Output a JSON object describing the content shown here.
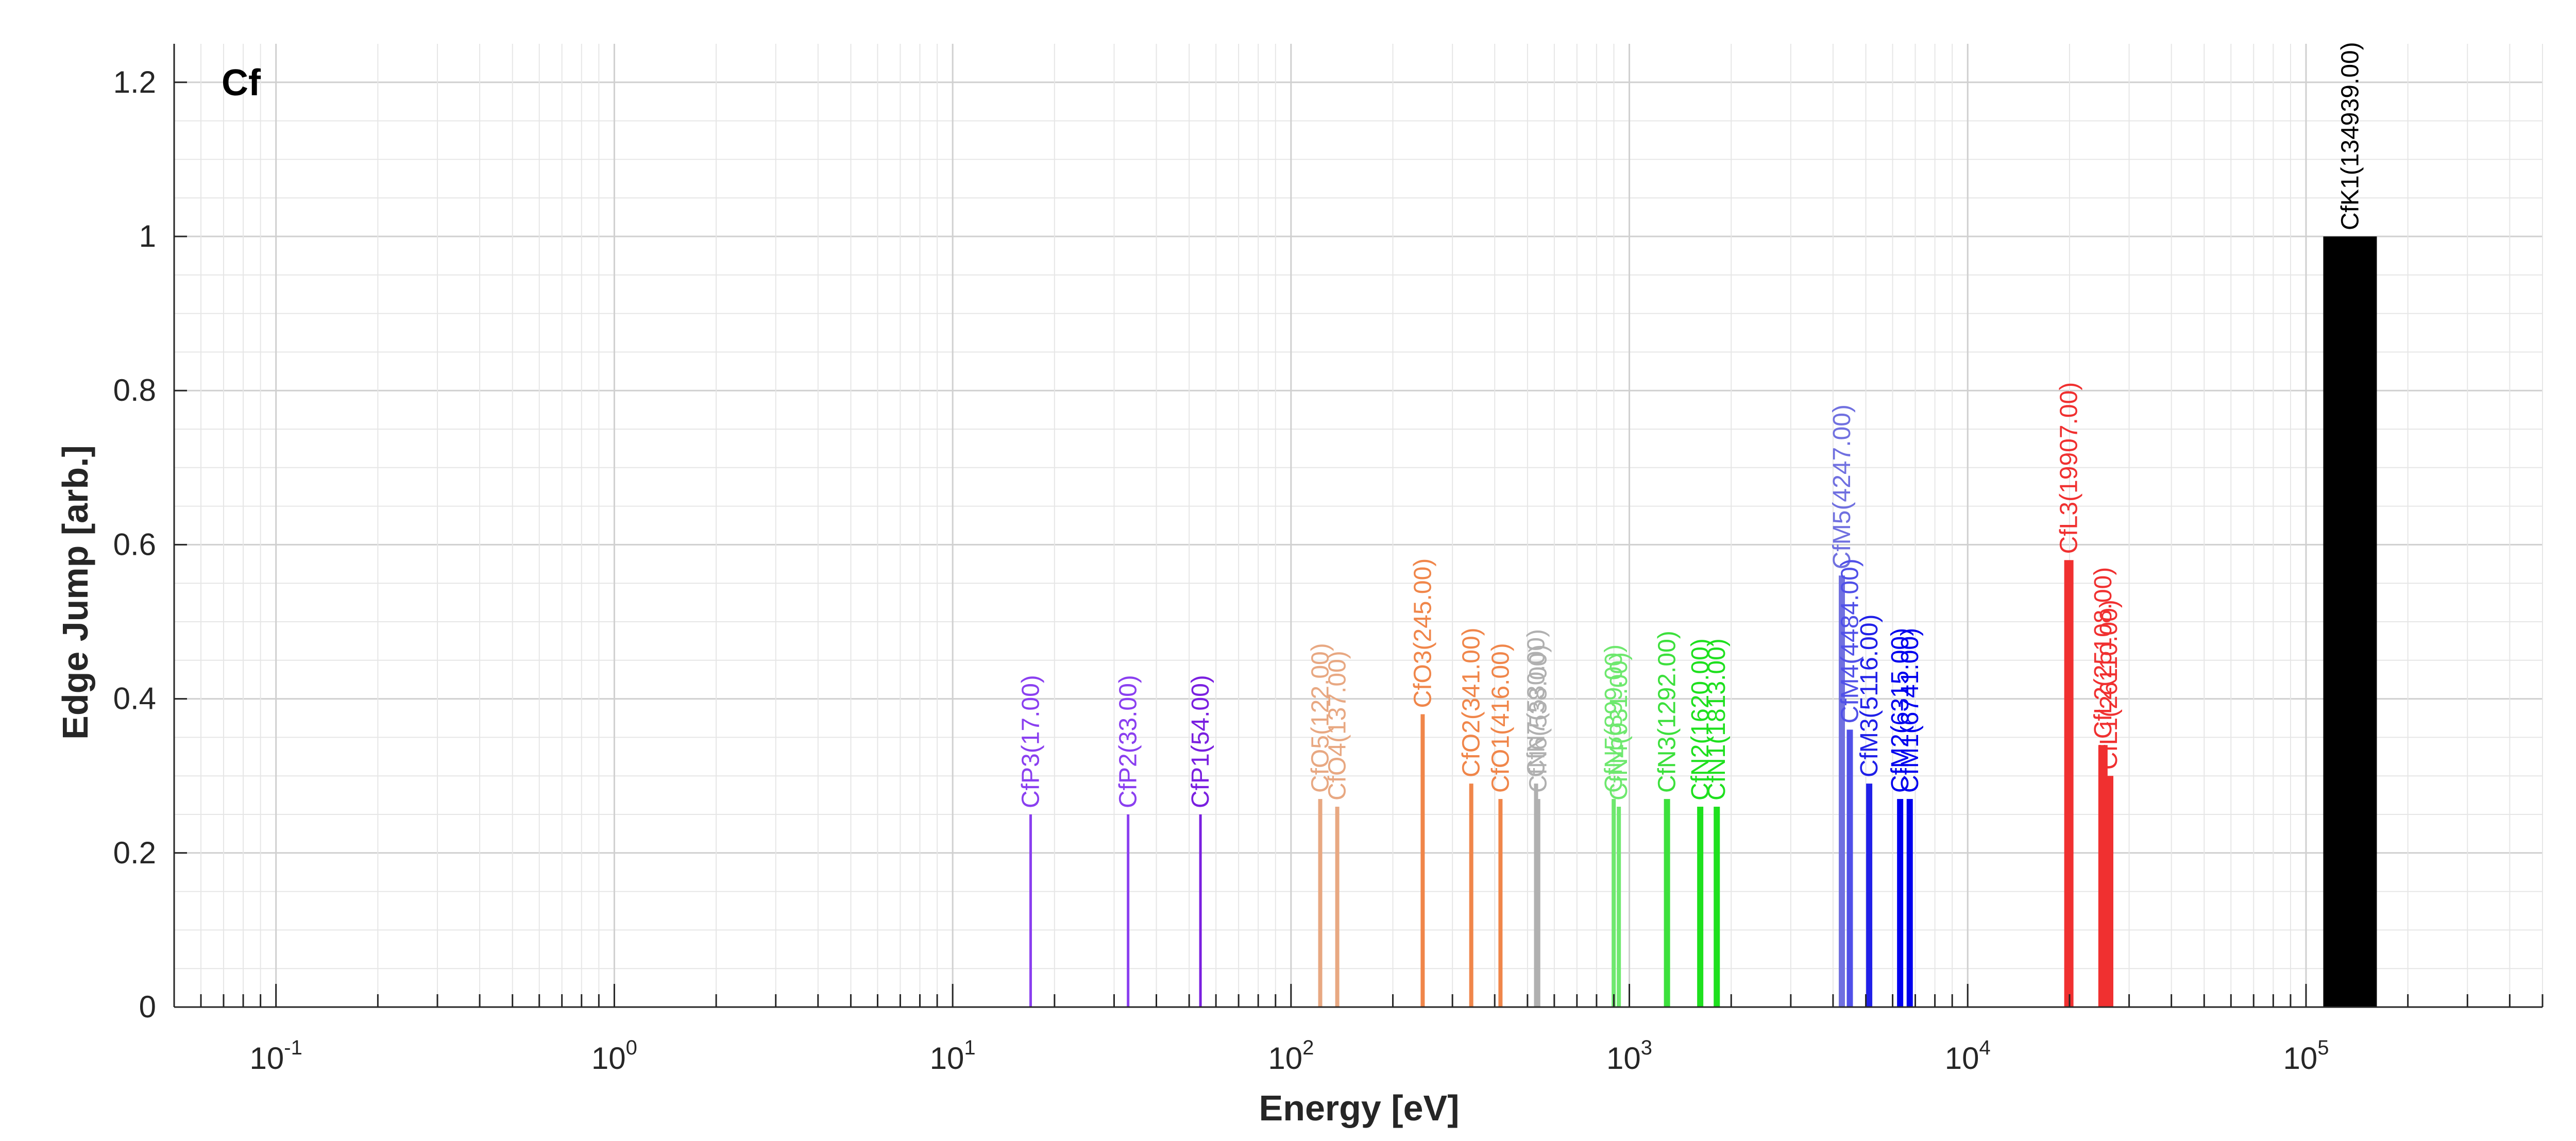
{
  "chart_data": {
    "type": "bar",
    "title": "",
    "element_label": "Cf",
    "xlabel": "Energy [eV]",
    "ylabel": "Edge Jump [arb.]",
    "xscale": "log",
    "xlim": [
      0.05,
      500000
    ],
    "ylim": [
      0,
      1.25
    ],
    "grid": true,
    "minor_grid": true,
    "xticks": [
      {
        "base": "10",
        "exp": "-1",
        "value": 0.1
      },
      {
        "base": "10",
        "exp": "0",
        "value": 1
      },
      {
        "base": "10",
        "exp": "1",
        "value": 10
      },
      {
        "base": "10",
        "exp": "2",
        "value": 100
      },
      {
        "base": "10",
        "exp": "3",
        "value": 1000
      },
      {
        "base": "10",
        "exp": "4",
        "value": 10000
      },
      {
        "base": "10",
        "exp": "5",
        "value": 100000
      }
    ],
    "yticks": [
      {
        "label": "0",
        "value": 0
      },
      {
        "label": "0.2",
        "value": 0.2
      },
      {
        "label": "0.4",
        "value": 0.4
      },
      {
        "label": "0.6",
        "value": 0.6
      },
      {
        "label": "0.8",
        "value": 0.8
      },
      {
        "label": "1",
        "value": 1
      },
      {
        "label": "1.2",
        "value": 1.2
      }
    ],
    "edges": [
      {
        "label": "CfP3(17.00)",
        "energy": 17,
        "jump": 0.25,
        "color": "#8a3ff0",
        "weight": 1
      },
      {
        "label": "CfP2(33.00)",
        "energy": 33,
        "jump": 0.25,
        "color": "#8a3ff0",
        "weight": 1
      },
      {
        "label": "CfP1(54.00)",
        "energy": 54,
        "jump": 0.25,
        "color": "#7a1fe0",
        "weight": 1
      },
      {
        "label": "CfO5(122.00)",
        "energy": 122,
        "jump": 0.27,
        "color": "#e8a882",
        "weight": 1
      },
      {
        "label": "CfO4(137.00)",
        "energy": 137,
        "jump": 0.26,
        "color": "#e8a882",
        "weight": 1
      },
      {
        "label": "CfO3(245.00)",
        "energy": 245,
        "jump": 0.38,
        "color": "#f0864a",
        "weight": 1
      },
      {
        "label": "CfO2(341.00)",
        "energy": 341,
        "jump": 0.29,
        "color": "#f0864a",
        "weight": 1
      },
      {
        "label": "CfO1(416.00)",
        "energy": 416,
        "jump": 0.27,
        "color": "#f0864a",
        "weight": 1
      },
      {
        "label": "CfN7(530.00)",
        "energy": 530,
        "jump": 0.29,
        "color": "#b0b0b0",
        "weight": 1
      },
      {
        "label": "CfN6(538.00)",
        "energy": 538,
        "jump": 0.27,
        "color": "#b0b0b0",
        "weight": 1
      },
      {
        "label": "CfN5(899.00)",
        "energy": 899,
        "jump": 0.27,
        "color": "#6ee86e",
        "weight": 1
      },
      {
        "label": "CfN4(931.00)",
        "energy": 931,
        "jump": 0.26,
        "color": "#6ee86e",
        "weight": 1
      },
      {
        "label": "CfN3(1292.00)",
        "energy": 1292,
        "jump": 0.27,
        "color": "#3ce03c",
        "weight": 1
      },
      {
        "label": "CfN2(1620.00)",
        "energy": 1620,
        "jump": 0.26,
        "color": "#1ee01e",
        "weight": 1
      },
      {
        "label": "CfN1(1813.00)",
        "energy": 1813,
        "jump": 0.26,
        "color": "#1ee01e",
        "weight": 1
      },
      {
        "label": "CfM5(4247.00)",
        "energy": 4247,
        "jump": 0.56,
        "color": "#7070e0",
        "weight": 1
      },
      {
        "label": "CfM4(4484.00)",
        "energy": 4484,
        "jump": 0.36,
        "color": "#5050e8",
        "weight": 1
      },
      {
        "label": "CfM3(5116.00)",
        "energy": 5116,
        "jump": 0.29,
        "color": "#2020e8",
        "weight": 1
      },
      {
        "label": "CfM2(6315.00)",
        "energy": 6315,
        "jump": 0.27,
        "color": "#0000ee",
        "weight": 1
      },
      {
        "label": "CfM1(6741.00)",
        "energy": 6741,
        "jump": 0.27,
        "color": "#0000ee",
        "weight": 1
      },
      {
        "label": "CfL3(19907.00)",
        "energy": 19907,
        "jump": 0.58,
        "color": "#f03030",
        "weight": 1
      },
      {
        "label": "CfL2(25108.00)",
        "energy": 25108,
        "jump": 0.34,
        "color": "#f03030",
        "weight": 1
      },
      {
        "label": "CfL1(26110.00)",
        "energy": 26110,
        "jump": 0.3,
        "color": "#f03030",
        "weight": 1
      },
      {
        "label": "CfK1(134939.00)",
        "energy": 134939,
        "jump": 1.0,
        "color": "#000000",
        "weight": 1
      }
    ]
  }
}
